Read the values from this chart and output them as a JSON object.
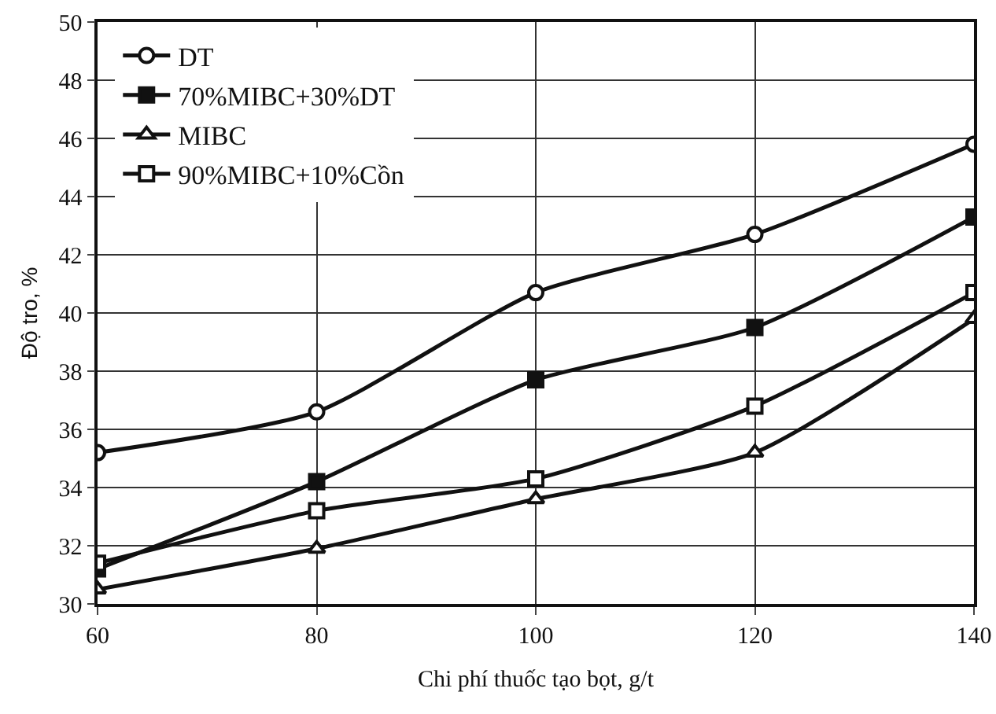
{
  "chart_data": {
    "type": "line",
    "xlabel": "Chi phí thuốc tạo bọt, g/t",
    "ylabel": "Độ tro, %",
    "x": [
      60,
      80,
      100,
      120,
      140
    ],
    "series": [
      {
        "name": "DT",
        "color": "#111111",
        "marker": "circle-open",
        "values": [
          35.2,
          36.6,
          40.7,
          42.7,
          45.8
        ]
      },
      {
        "name": "70%MIBC+30%DT",
        "color": "#111111",
        "marker": "square",
        "values": [
          31.2,
          34.2,
          37.7,
          39.5,
          43.3
        ]
      },
      {
        "name": "MIBC",
        "color": "#111111",
        "marker": "triangle-open",
        "values": [
          30.5,
          31.9,
          33.6,
          35.2,
          39.8
        ]
      },
      {
        "name": "90%MIBC+10%Cồn",
        "color": "#111111",
        "marker": "square-open",
        "values": [
          31.4,
          33.2,
          34.3,
          36.8,
          40.7
        ]
      }
    ],
    "xlim": [
      60,
      140
    ],
    "xticks": [
      60,
      80,
      100,
      120,
      140
    ],
    "ylim": [
      30,
      50
    ],
    "yticks": [
      30,
      32,
      34,
      36,
      38,
      40,
      42,
      44,
      46,
      48,
      50
    ],
    "grid": true,
    "legend": "top left",
    "line_style": "solid"
  }
}
